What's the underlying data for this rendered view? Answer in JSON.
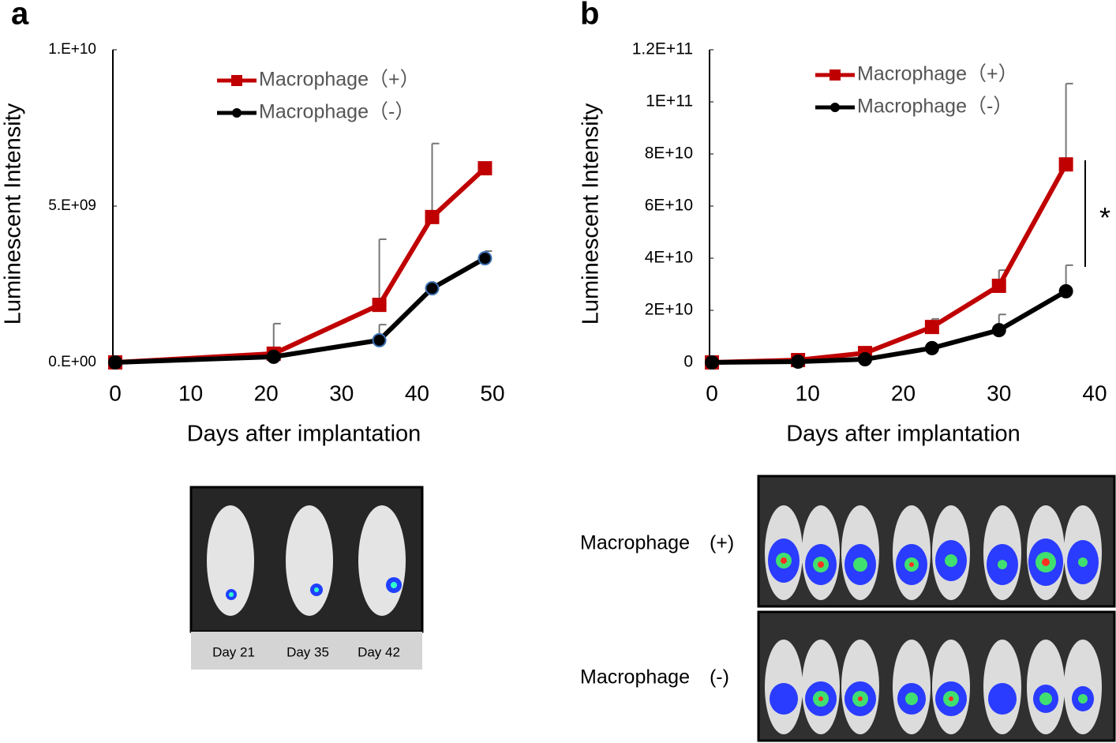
{
  "chart_data": [
    {
      "type": "line",
      "panel": "a",
      "x_label": "Days after implantation",
      "y_label": "Luminescent Intensity",
      "xlim": [
        0,
        50
      ],
      "xticks": [
        0,
        10,
        20,
        30,
        40,
        50
      ],
      "ylim": [
        0,
        10000000000
      ],
      "yticks": [
        {
          "value": 0,
          "label": "0.E+00"
        },
        {
          "value": 5000000000,
          "label": "5.E+09"
        },
        {
          "value": 10000000000,
          "label": "1.E+10"
        }
      ],
      "x": [
        0,
        21,
        35,
        42,
        49
      ],
      "series": [
        {
          "name": "Macrophage（+）",
          "color": "#c00000",
          "marker": "square",
          "values": [
            0,
            280000000,
            1840000000,
            4650000000,
            6210000000
          ],
          "errors": [
            null,
            960000000,
            2100000000,
            2350000000,
            null
          ]
        },
        {
          "name": "Macrophage（-）",
          "color": "#000000",
          "marker": "circle",
          "values": [
            0,
            180000000,
            710000000,
            2370000000,
            3330000000
          ],
          "errors": [
            null,
            null,
            500000000,
            null,
            230000000
          ]
        }
      ],
      "image_captions": [
        "Day 21",
        "Day 35",
        "Day 42"
      ]
    },
    {
      "type": "line",
      "panel": "b",
      "x_label": "Days after implantation",
      "y_label": "Luminescent Intensity",
      "xlim": [
        0,
        40
      ],
      "xticks": [
        0,
        10,
        20,
        30,
        40
      ],
      "ylim": [
        0,
        120000000000
      ],
      "yticks": [
        0,
        {
          "value": 20000000000,
          "label": "2E+10"
        },
        {
          "value": 40000000000,
          "label": "4E+10"
        },
        {
          "value": 60000000000,
          "label": "6E+10"
        },
        {
          "value": 80000000000,
          "label": "8E+10"
        },
        {
          "value": 100000000000,
          "label": "1E+11"
        },
        {
          "value": 120000000000,
          "label": "1.2E+11"
        }
      ],
      "x": [
        0,
        9,
        16,
        23,
        30,
        37
      ],
      "series": [
        {
          "name": "Macrophage（+）",
          "color": "#c00000",
          "marker": "square",
          "values": [
            0,
            900000000,
            3600000000,
            13600000000,
            29400000000,
            76000000000
          ],
          "errors": [
            null,
            null,
            null,
            3100000000,
            6000000000,
            31000000000
          ]
        },
        {
          "name": "Macrophage（-）",
          "color": "#000000",
          "marker": "circle",
          "values": [
            0,
            300000000,
            1200000000,
            5500000000,
            12400000000,
            27300000000
          ],
          "errors": [
            null,
            null,
            null,
            null,
            6000000000,
            10000000000
          ]
        }
      ],
      "annotation": "*",
      "image_row_labels": [
        "Macrophage　(+)",
        "Macrophage　(-)"
      ]
    }
  ]
}
